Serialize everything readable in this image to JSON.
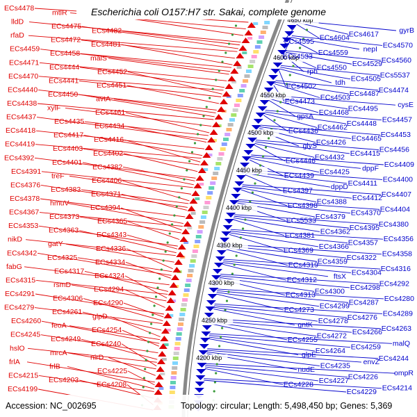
{
  "title": "Escherichia coli O157:H7 str. Sakai, complete genome",
  "accession_line": "Accession: NC_002695",
  "topology_line": "Topology: circular; Length: 5,498,450 bp; Genes: 5,369",
  "colors": {
    "forward_strand": "#e00000",
    "reverse_strand": "#0000cc",
    "backbone": "#888888",
    "tick_dots": "#3a9a3a"
  },
  "kbp_marks": [
    "4650 kbp",
    "4600 kbp",
    "4550 kbp",
    "4500 kbp",
    "4450 kbp",
    "4400 kbp",
    "4350 kbp",
    "4300 kbp",
    "4250 kbp",
    "4200 kbp"
  ],
  "left_labels": [
    "ECs4478",
    "mtlR",
    "ECs4476",
    "lldD",
    "ECs4475",
    "ECs4482",
    "rfaD",
    "ECs4472",
    "ECs4481",
    "ECs4459",
    "ECs4458",
    "malS",
    "ECs4471",
    "ECs4444",
    "ECs4452",
    "ECs4470",
    "ECs4441",
    "ECs4451",
    "ECs4440",
    "ECs4450",
    "avtA",
    "ECs4438",
    "xylF",
    "ECs4461",
    "ECs4437",
    "ECs4435",
    "ECs4434",
    "ECs4418",
    "ECs4417",
    "ECs4416",
    "ECs4419",
    "ECs4403",
    "ECs4402",
    "ECs4392",
    "ECs4401",
    "ECs4382",
    "ECs4391",
    "treF",
    "ECs4406",
    "ECs4376",
    "ECs4383",
    "ECs4371",
    "ECs4378",
    "hmuV",
    "ECs4394",
    "ECs4367",
    "ECs4373",
    "ECs4365",
    "ECs4353",
    "ECs4363",
    "ECs4343",
    "nikD",
    "gatY",
    "ECs4336",
    "ECs4342",
    "ECs4325",
    "ECs4334",
    "fabG",
    "ECs4317",
    "ECs4324",
    "ECs4315",
    "rsmD",
    "ECs4294",
    "ECs4291",
    "ECs4306",
    "ECs4290",
    "ECs4279",
    "ECs4261",
    "glpD",
    "ECs4260",
    "feoA",
    "ECs4254",
    "ECs4245",
    "ECs4249",
    "ECs4240",
    "hslO",
    "mrcA",
    "nirD",
    "frlA",
    "frlB",
    "ECs4225",
    "ECs4215",
    "ECs4203",
    "ECs4208",
    "ECs4199"
  ],
  "right_labels": [
    "gyrB",
    "ECs4617",
    "ECs4604",
    "ECs4595",
    "ECs4570",
    "nepI",
    "ECs4559",
    "ECs4533",
    "ECs4560",
    "ECs4529",
    "ECs4550",
    "rph",
    "ECs5537",
    "ECs4505",
    "tdh",
    "ECs4502",
    "ECs4474",
    "ECs4487",
    "ECs4503",
    "ECs4473",
    "cysE",
    "ECs4495",
    "ECs4468",
    "gpsA",
    "ECs4457",
    "ECs4448",
    "ECs4462",
    "ECs4436",
    "ECs4453",
    "ECs4465",
    "ECs4426",
    "glyS",
    "ECs4456",
    "ECs4415",
    "ECs4432",
    "ECs4446",
    "ECs4409",
    "dppF",
    "ECs4425",
    "ECs4439",
    "ECs4400",
    "ECs4411",
    "dppD",
    "ECs4397",
    "ECs4407",
    "ECs4412",
    "ECs4388",
    "ECs4398",
    "ECs4404",
    "ECs4370",
    "ECs4379",
    "ECs5533",
    "ECs4380",
    "ECs4395",
    "ECs4362",
    "ECs4381",
    "ECs4356",
    "ECs4357",
    "ECs4366",
    "ECs4369",
    "ECs4358",
    "ECs4322",
    "ECs4359",
    "ECs4319",
    "ECs4316",
    "ECs4304",
    "ftsX",
    "ECs4312",
    "ECs4292",
    "ECs4298",
    "ECs4300",
    "ECs4313",
    "ECs4280",
    "ECs4287",
    "ECs4299",
    "ECs4273",
    "ECs4289",
    "ECs4276",
    "ECs4278",
    "gntK",
    "ECs4263",
    "ECs4266",
    "ECs4272",
    "ECs4255",
    "malQ",
    "ECs4259",
    "ECs4264",
    "glpE",
    "ECs4244",
    "envZ",
    "ECs4235",
    "nudE",
    "ompR",
    "ECs4226",
    "ECs4227",
    "ECs4228",
    "ECs4214",
    "ECs4229"
  ]
}
